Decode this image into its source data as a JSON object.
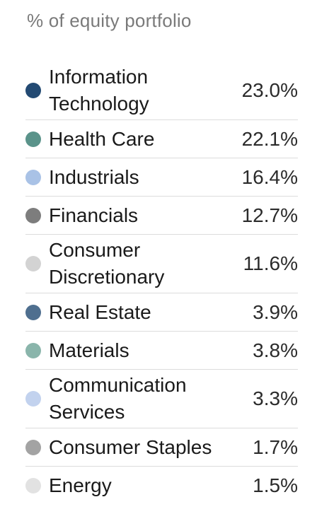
{
  "header": {
    "title": "% of equity portfolio"
  },
  "rows": [
    {
      "label": "Information Technology",
      "value": "23.0%",
      "color": "#234a73",
      "lines": 2
    },
    {
      "label": "Health Care",
      "value": "22.1%",
      "color": "#5a938a",
      "lines": 1
    },
    {
      "label": "Industrials",
      "value": "16.4%",
      "color": "#a9c2e6",
      "lines": 1
    },
    {
      "label": "Financials",
      "value": "12.7%",
      "color": "#7d7d7d",
      "lines": 1
    },
    {
      "label": "Consumer Discretionary",
      "value": "11.6%",
      "color": "#d3d3d3",
      "lines": 2
    },
    {
      "label": "Real Estate",
      "value": "3.9%",
      "color": "#4f6f8f",
      "lines": 1
    },
    {
      "label": "Materials",
      "value": "3.8%",
      "color": "#8ab5ab",
      "lines": 1
    },
    {
      "label": "Communication Services",
      "value": "3.3%",
      "color": "#c2d2ee",
      "lines": 2
    },
    {
      "label": "Consumer Staples",
      "value": "1.7%",
      "color": "#a3a3a3",
      "lines": 1
    },
    {
      "label": "Energy",
      "value": "1.5%",
      "color": "#e2e2e2",
      "lines": 1
    }
  ]
}
